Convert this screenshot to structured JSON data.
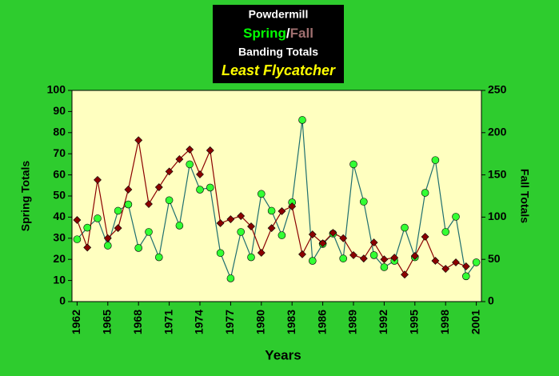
{
  "chart_data": {
    "type": "line",
    "title": "Powdermill",
    "title_separator": "/",
    "subtitle": "Banding Totals",
    "species": "Least Flycatcher",
    "x_label": "Years",
    "y_label": "Spring Totals",
    "y2_label": "Fall Totals",
    "x": [
      1962,
      1963,
      1964,
      1965,
      1966,
      1967,
      1968,
      1969,
      1970,
      1971,
      1972,
      1973,
      1974,
      1975,
      1976,
      1977,
      1978,
      1979,
      1980,
      1981,
      1982,
      1983,
      1984,
      1985,
      1986,
      1987,
      1988,
      1989,
      1990,
      1991,
      1992,
      1993,
      1994,
      1995,
      1996,
      1997,
      1998,
      1999,
      2000,
      2001
    ],
    "xlim": [
      1961.5,
      2001.5
    ],
    "xticks": [
      1962,
      1965,
      1968,
      1971,
      1974,
      1977,
      1980,
      1983,
      1986,
      1989,
      1992,
      1995,
      1998,
      2001
    ],
    "ylim": [
      0,
      100
    ],
    "yticks": [
      0,
      10,
      20,
      30,
      40,
      50,
      60,
      70,
      80,
      90,
      100
    ],
    "y2lim": [
      0,
      250
    ],
    "y2ticks": [
      0,
      50,
      100,
      150,
      200,
      250
    ],
    "series": [
      {
        "name": "Spring",
        "color": "#33ff33",
        "line_color": "#1f6f6f",
        "marker": "circle",
        "values": [
          29.5,
          35,
          39.4,
          26.5,
          43,
          46,
          25.4,
          33,
          21,
          48,
          36,
          65,
          53,
          54,
          23,
          11,
          33,
          21,
          51,
          43,
          31.4,
          47,
          86,
          19.3,
          27.3,
          32.2,
          20.4,
          65,
          47.3,
          22,
          16.3,
          19.3,
          35,
          21,
          51.5,
          67,
          33,
          40.2,
          12,
          18.6
        ]
      },
      {
        "name": "Fall",
        "color": "#8b0000",
        "line_color": "#8b0000",
        "marker": "diamond",
        "axis": "y2",
        "values": [
          96.6,
          64,
          144,
          75,
          87,
          132.6,
          191,
          115.5,
          135.4,
          154,
          168.6,
          180,
          150.6,
          179,
          92.8,
          97.5,
          101.3,
          89,
          57.8,
          87,
          107,
          112.7,
          56,
          79.5,
          69,
          81.4,
          75,
          55,
          51,
          70,
          50,
          52,
          32,
          54,
          76.7,
          48.3,
          38.8,
          46.4,
          41.7,
          null
        ]
      }
    ]
  }
}
